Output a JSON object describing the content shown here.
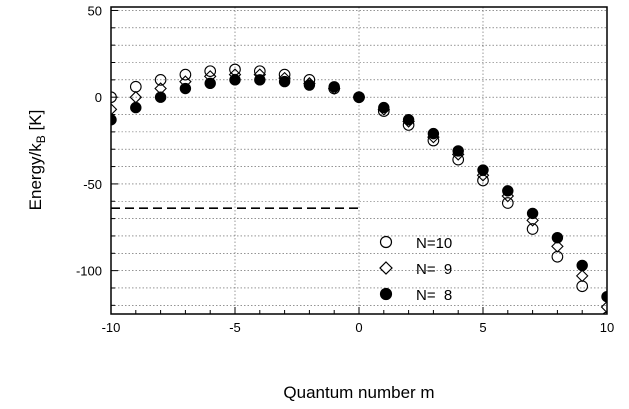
{
  "chart_data": {
    "type": "scatter",
    "xlabel": "Quantum number m",
    "ylabel_main": "Energy/k",
    "ylabel_sub": "B",
    "ylabel_unit": " [K]",
    "xlim": [
      -10,
      10
    ],
    "ylim": [
      -125,
      52
    ],
    "xticks": [
      -10,
      -5,
      0,
      5,
      10
    ],
    "xtick_labels": [
      "-10",
      "-5",
      "0",
      "5",
      "10"
    ],
    "yticks": [
      50,
      0,
      -50,
      -100
    ],
    "ytick_labels": [
      "50",
      "0",
      "-50",
      "-100"
    ],
    "grid": true,
    "legend_position": "lower-right",
    "reference_line": {
      "style": "dashed",
      "x": [
        -10,
        0
      ],
      "y": -64
    },
    "series": [
      {
        "name": "N=10",
        "marker": "open-circle",
        "x": [
          -10,
          -9,
          -8,
          -7,
          -6,
          -5,
          -4,
          -3,
          -2,
          -1,
          0,
          1,
          2,
          3,
          4,
          5,
          6,
          7,
          8,
          9,
          10
        ],
        "y": [
          0,
          6,
          10,
          13,
          15,
          16,
          15,
          13,
          10,
          5,
          0,
          -8,
          -16,
          -25,
          -36,
          -48,
          -61,
          -76,
          -92,
          -109,
          -127
        ]
      },
      {
        "name": "N=  9",
        "marker": "open-diamond",
        "x": [
          -10,
          -9,
          -8,
          -7,
          -6,
          -5,
          -4,
          -3,
          -2,
          -1,
          0,
          1,
          2,
          3,
          4,
          5,
          6,
          7,
          8,
          9,
          10
        ],
        "y": [
          -7,
          0,
          5,
          9,
          12,
          13,
          13,
          11,
          8,
          5,
          0,
          -7,
          -14,
          -23,
          -33,
          -45,
          -57,
          -71,
          -86,
          -103,
          -121
        ]
      },
      {
        "name": "N=  8",
        "marker": "filled-circle",
        "x": [
          -10,
          -9,
          -8,
          -7,
          -6,
          -5,
          -4,
          -3,
          -2,
          -1,
          0,
          1,
          2,
          3,
          4,
          5,
          6,
          7,
          8,
          9,
          10
        ],
        "y": [
          -13,
          -6,
          0,
          5,
          8,
          10,
          10,
          9,
          7,
          6,
          0,
          -6,
          -13,
          -21,
          -31,
          -42,
          -54,
          -67,
          -81,
          -97,
          -115
        ]
      }
    ]
  }
}
